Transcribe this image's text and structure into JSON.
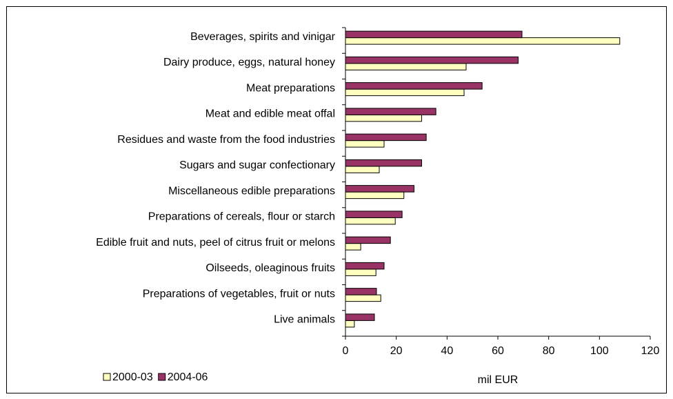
{
  "chart_data": {
    "type": "bar",
    "orientation": "horizontal",
    "x_label": "mil EUR",
    "categories": [
      "Beverages, spirits and vinigar",
      "Dairy produce, eggs, natural honey",
      "Meat preparations",
      "Meat and edible meat offal",
      "Residues and waste from the food industries",
      "Sugars and sugar confectionary",
      "Miscellaneous edible preparations",
      "Preparations of cereals, flour or starch",
      "Edible fruit and nuts, peel of citrus fruit or melons",
      "Oilseeds, oleaginous fruits",
      "Preparations of vegetables, fruit or nuts",
      "Live animals"
    ],
    "series": [
      {
        "name": "2000-03",
        "color": "#ffffc0",
        "values": [
          108,
          47.5,
          46.7,
          30,
          15.2,
          13.3,
          23,
          19.6,
          6,
          12,
          13.9,
          3.5
        ]
      },
      {
        "name": "2004-06",
        "color": "#993366",
        "values": [
          69.5,
          68,
          53.8,
          35.6,
          31.8,
          30,
          27,
          22.3,
          17.7,
          15.2,
          12.2,
          11.4
        ]
      }
    ],
    "xlim": [
      0,
      120
    ],
    "xticks": [
      0,
      20,
      40,
      60,
      80,
      100,
      120
    ],
    "grid": false,
    "legend": "bottom-left"
  }
}
